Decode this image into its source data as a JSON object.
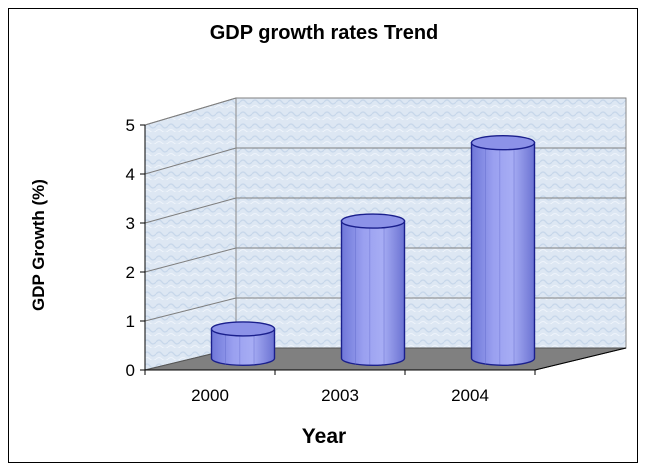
{
  "chart_data": {
    "type": "bar",
    "title": "GDP growth rates Trend",
    "xlabel": "Year",
    "ylabel": "GDP Growth (%)",
    "categories": [
      "2000",
      "2003",
      "2004"
    ],
    "values": [
      0.6,
      2.8,
      4.4
    ],
    "ylim": [
      0,
      5
    ],
    "yticks": [
      "0",
      "1",
      "2",
      "3",
      "4",
      "5"
    ],
    "grid": true,
    "legend": "none",
    "bar_color": "#8c92e8",
    "bar_edge_color": "#1a1f8c",
    "floor_color": "#808080",
    "wall_color": "#dbe6f2"
  }
}
